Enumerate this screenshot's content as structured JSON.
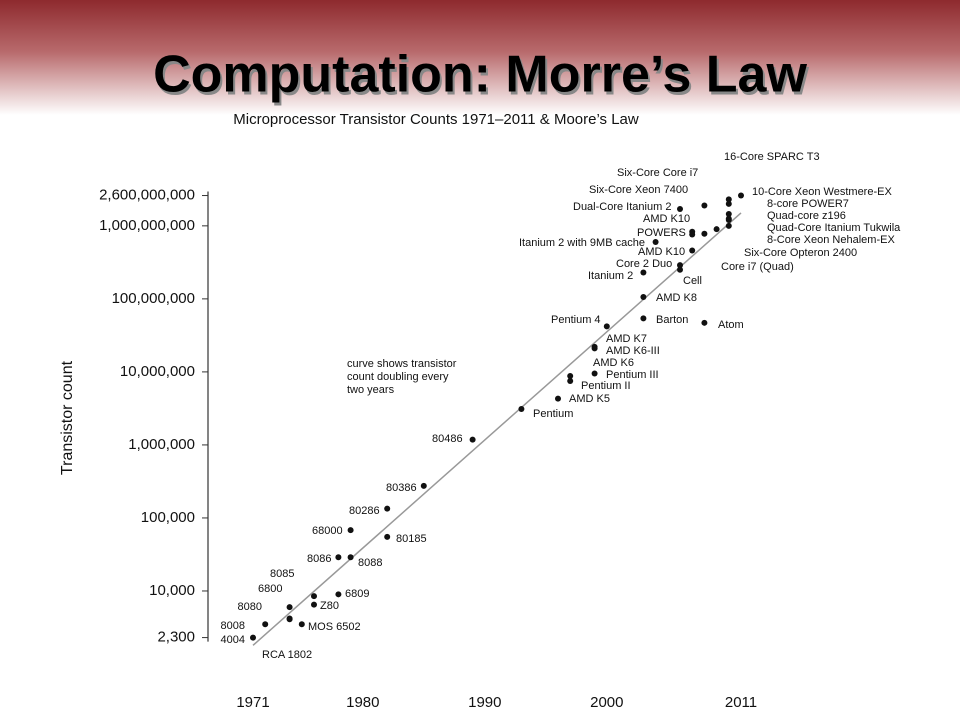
{
  "slide_title": "Computation: Morre’s Law",
  "chart_data": {
    "type": "scatter",
    "title": "Microprocessor Transistor Counts 1971–2011 & Moore’s Law",
    "y_label": "Transistor count",
    "annotation": [
      "curve shows transistor",
      "count doubling every",
      "two years"
    ],
    "log_y": true,
    "color": "#111111",
    "xlim": [
      1968,
      2014
    ],
    "xticks": [
      1971,
      1980,
      1990,
      2000,
      2011
    ],
    "ylim": [
      1000,
      3000000000
    ],
    "yticks": [
      {
        "value": 2300,
        "label": "2,300"
      },
      {
        "value": 10000,
        "label": "10,000"
      },
      {
        "value": 100000,
        "label": "100,000"
      },
      {
        "value": 1000000,
        "label": "1,000,000"
      },
      {
        "value": 10000000,
        "label": "10,000,000"
      },
      {
        "value": 100000000,
        "label": "100,000,000"
      },
      {
        "value": 1000000000,
        "label": "1,000,000,000"
      },
      {
        "value": 2600000000,
        "label": "2,600,000,000"
      }
    ],
    "trend": {
      "x": [
        1971,
        2011
      ],
      "values": [
        1800,
        1500000000
      ]
    },
    "point_labels": [
      "4004",
      "8008",
      "8080",
      "RCA 1802",
      "6800",
      "MOS 6502",
      "8085",
      "Z80",
      "6809",
      "8086",
      "8088",
      "68000",
      "80185",
      "80286",
      "80386",
      "80486",
      "Pentium",
      "AMD K5",
      "Pentium II",
      "AMD K6",
      "Pentium III",
      "AMD K7",
      "AMD K6-III",
      "Pentium 4",
      "Barton",
      "Atom",
      "AMD K8",
      "Itanium 2",
      "Core 2 Duo",
      "Cell",
      "AMD K10",
      "Itanium 2 with 9MB cache",
      "Core i7 (Quad)",
      "POWERS",
      "AMD K10",
      "Six-Core Opteron 2400",
      "Dual-Core Itanium 2",
      "Six-Core Xeon 7400",
      "Six-Core Core i7",
      "16-Core SPARC T3",
      "10-Core Xeon Westmere-EX",
      "8-core POWER7",
      "Quad-core z196",
      "Quad-Core Itanium Tukwila",
      "8-Core Xeon Nehalem-EX"
    ],
    "x": [
      1971,
      1972,
      1974,
      1974,
      1974,
      1975,
      1976,
      1976,
      1978,
      1978,
      1979,
      1979,
      1982,
      1982,
      1985,
      1989,
      1993,
      1996,
      1997,
      1997,
      1999,
      1999,
      1999,
      2000,
      2003,
      2008,
      2003,
      2003,
      2006,
      2006,
      2007,
      2004,
      2008,
      2007,
      2007,
      2009,
      2006,
      2008,
      2010,
      2010,
      2011,
      2010,
      2010,
      2010,
      2010
    ],
    "values": [
      2300,
      3500,
      6000,
      4200,
      4100,
      3500,
      8500,
      6500,
      9000,
      29000,
      29000,
      68000,
      55000,
      134000,
      275000,
      1180000,
      3100000,
      4300000,
      7500000,
      8800000,
      9500000,
      22000000,
      21000000,
      42000000,
      54000000,
      47000000,
      106000000,
      230000000,
      290000000,
      250000000,
      460000000,
      600000000,
      780000000,
      830000000,
      760000000,
      900000000,
      1700000000,
      1900000000,
      2300000000,
      2000000000,
      2600000000,
      1450000000,
      1250000000,
      1200000000,
      1000000000
    ]
  }
}
